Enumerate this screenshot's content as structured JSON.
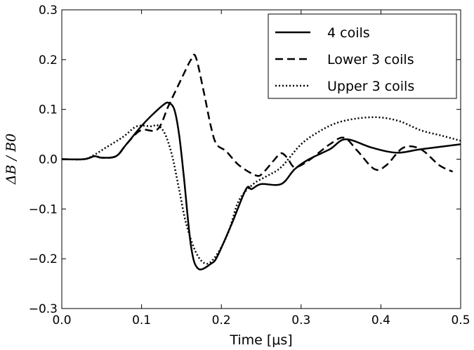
{
  "chart_data": {
    "type": "line",
    "title": "",
    "xlabel": "Time [μs]",
    "ylabel": "ΔB / B0",
    "xlim": [
      0,
      0.5
    ],
    "ylim": [
      -0.3,
      0.3
    ],
    "xticks": [
      0.0,
      0.1,
      0.2,
      0.3,
      0.4,
      0.5
    ],
    "xtick_labels": [
      "0.0",
      "0.1",
      "0.2",
      "0.3",
      "0.4",
      "0.5"
    ],
    "yticks": [
      -0.3,
      -0.2,
      -0.1,
      0.0,
      0.1,
      0.2,
      0.3
    ],
    "ytick_labels": [
      "−0.3",
      "−0.2",
      "−0.1",
      "0.0",
      "0.1",
      "0.2",
      "0.3"
    ],
    "grid": false,
    "legend_position": "top-right",
    "series": [
      {
        "name": "4 coils",
        "style": "solid",
        "x": [
          0,
          0.028,
          0.041,
          0.05,
          0.068,
          0.081,
          0.099,
          0.112,
          0.128,
          0.134,
          0.141,
          0.147,
          0.153,
          0.162,
          0.171,
          0.187,
          0.195,
          0.213,
          0.231,
          0.238,
          0.25,
          0.275,
          0.292,
          0.31,
          0.336,
          0.356,
          0.389,
          0.42,
          0.45,
          0.5
        ],
        "y": [
          0,
          0,
          0.006,
          0.003,
          0.006,
          0.03,
          0.065,
          0.087,
          0.11,
          0.113,
          0.1,
          0.05,
          -0.035,
          -0.175,
          -0.22,
          -0.21,
          -0.195,
          -0.13,
          -0.06,
          -0.06,
          -0.05,
          -0.05,
          -0.02,
          0,
          0.02,
          0.04,
          0.023,
          0.013,
          0.02,
          0.03
        ]
      },
      {
        "name": "Lower 3 coils",
        "style": "dashed",
        "x": [
          0,
          0.028,
          0.041,
          0.05,
          0.068,
          0.081,
          0.099,
          0.12,
          0.134,
          0.151,
          0.162,
          0.168,
          0.178,
          0.187,
          0.194,
          0.206,
          0.222,
          0.244,
          0.253,
          0.266,
          0.275,
          0.283,
          0.292,
          0.31,
          0.336,
          0.354,
          0.371,
          0.392,
          0.407,
          0.428,
          0.45,
          0.473,
          0.49
        ],
        "y": [
          0,
          0,
          0.006,
          0.003,
          0.006,
          0.03,
          0.058,
          0.06,
          0.108,
          0.165,
          0.2,
          0.205,
          0.135,
          0.065,
          0.03,
          0.016,
          -0.012,
          -0.033,
          -0.026,
          -0.002,
          0.012,
          0.002,
          -0.016,
          -0.002,
          0.03,
          0.043,
          0.016,
          -0.02,
          -0.012,
          0.023,
          0.02,
          -0.012,
          -0.025
        ]
      },
      {
        "name": "Upper 3 coils",
        "style": "dotted",
        "x": [
          0,
          0.028,
          0.041,
          0.055,
          0.077,
          0.094,
          0.112,
          0.12,
          0.129,
          0.138,
          0.147,
          0.156,
          0.169,
          0.182,
          0.195,
          0.209,
          0.222,
          0.24,
          0.257,
          0.275,
          0.3,
          0.323,
          0.345,
          0.371,
          0.398,
          0.424,
          0.45,
          0.477,
          0.5
        ],
        "y": [
          0,
          0,
          0.009,
          0.023,
          0.045,
          0.066,
          0.066,
          0.068,
          0.052,
          0.009,
          -0.06,
          -0.13,
          -0.19,
          -0.21,
          -0.19,
          -0.146,
          -0.083,
          -0.05,
          -0.034,
          -0.016,
          0.03,
          0.056,
          0.073,
          0.082,
          0.084,
          0.076,
          0.058,
          0.047,
          0.037
        ]
      }
    ]
  }
}
